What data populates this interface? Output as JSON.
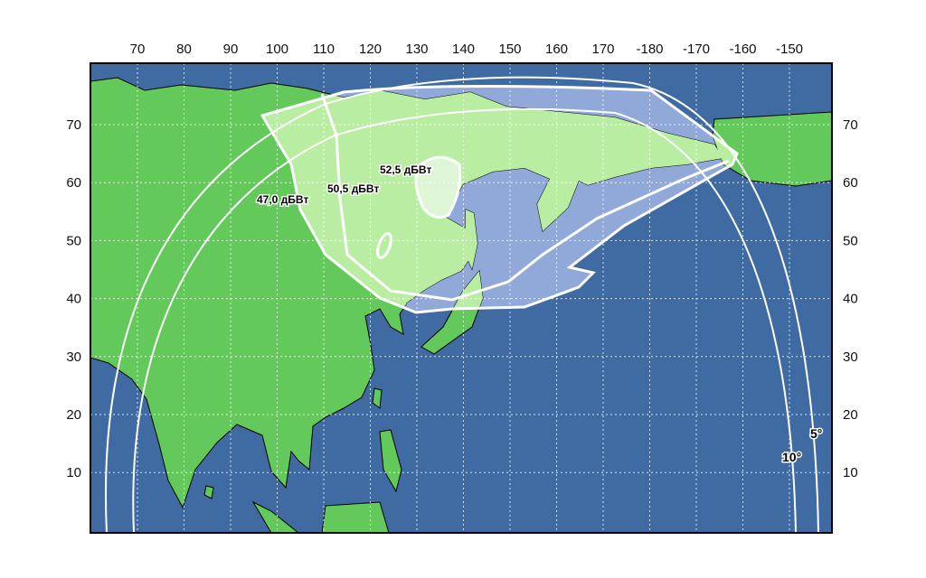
{
  "map": {
    "longitude_ticks": [
      "70",
      "80",
      "90",
      "100",
      "110",
      "120",
      "130",
      "140",
      "150",
      "160",
      "170",
      "-180",
      "-170",
      "-160",
      "-150"
    ],
    "latitude_ticks": [
      "70",
      "60",
      "50",
      "40",
      "30",
      "20",
      "10"
    ],
    "contour_labels": [
      "47,0 дБВт",
      "50,5 дБВт",
      "52,5 дБВт"
    ],
    "elevation_labels": [
      "10°",
      "5°"
    ],
    "colors": {
      "ocean": "#3f6aa2",
      "land": "#62c95a",
      "coverage_land": "#b9eea2",
      "coverage_core": "#dff6d6",
      "coverage_ocean": "#91a9d9",
      "contour_line": "#ffffff"
    }
  }
}
